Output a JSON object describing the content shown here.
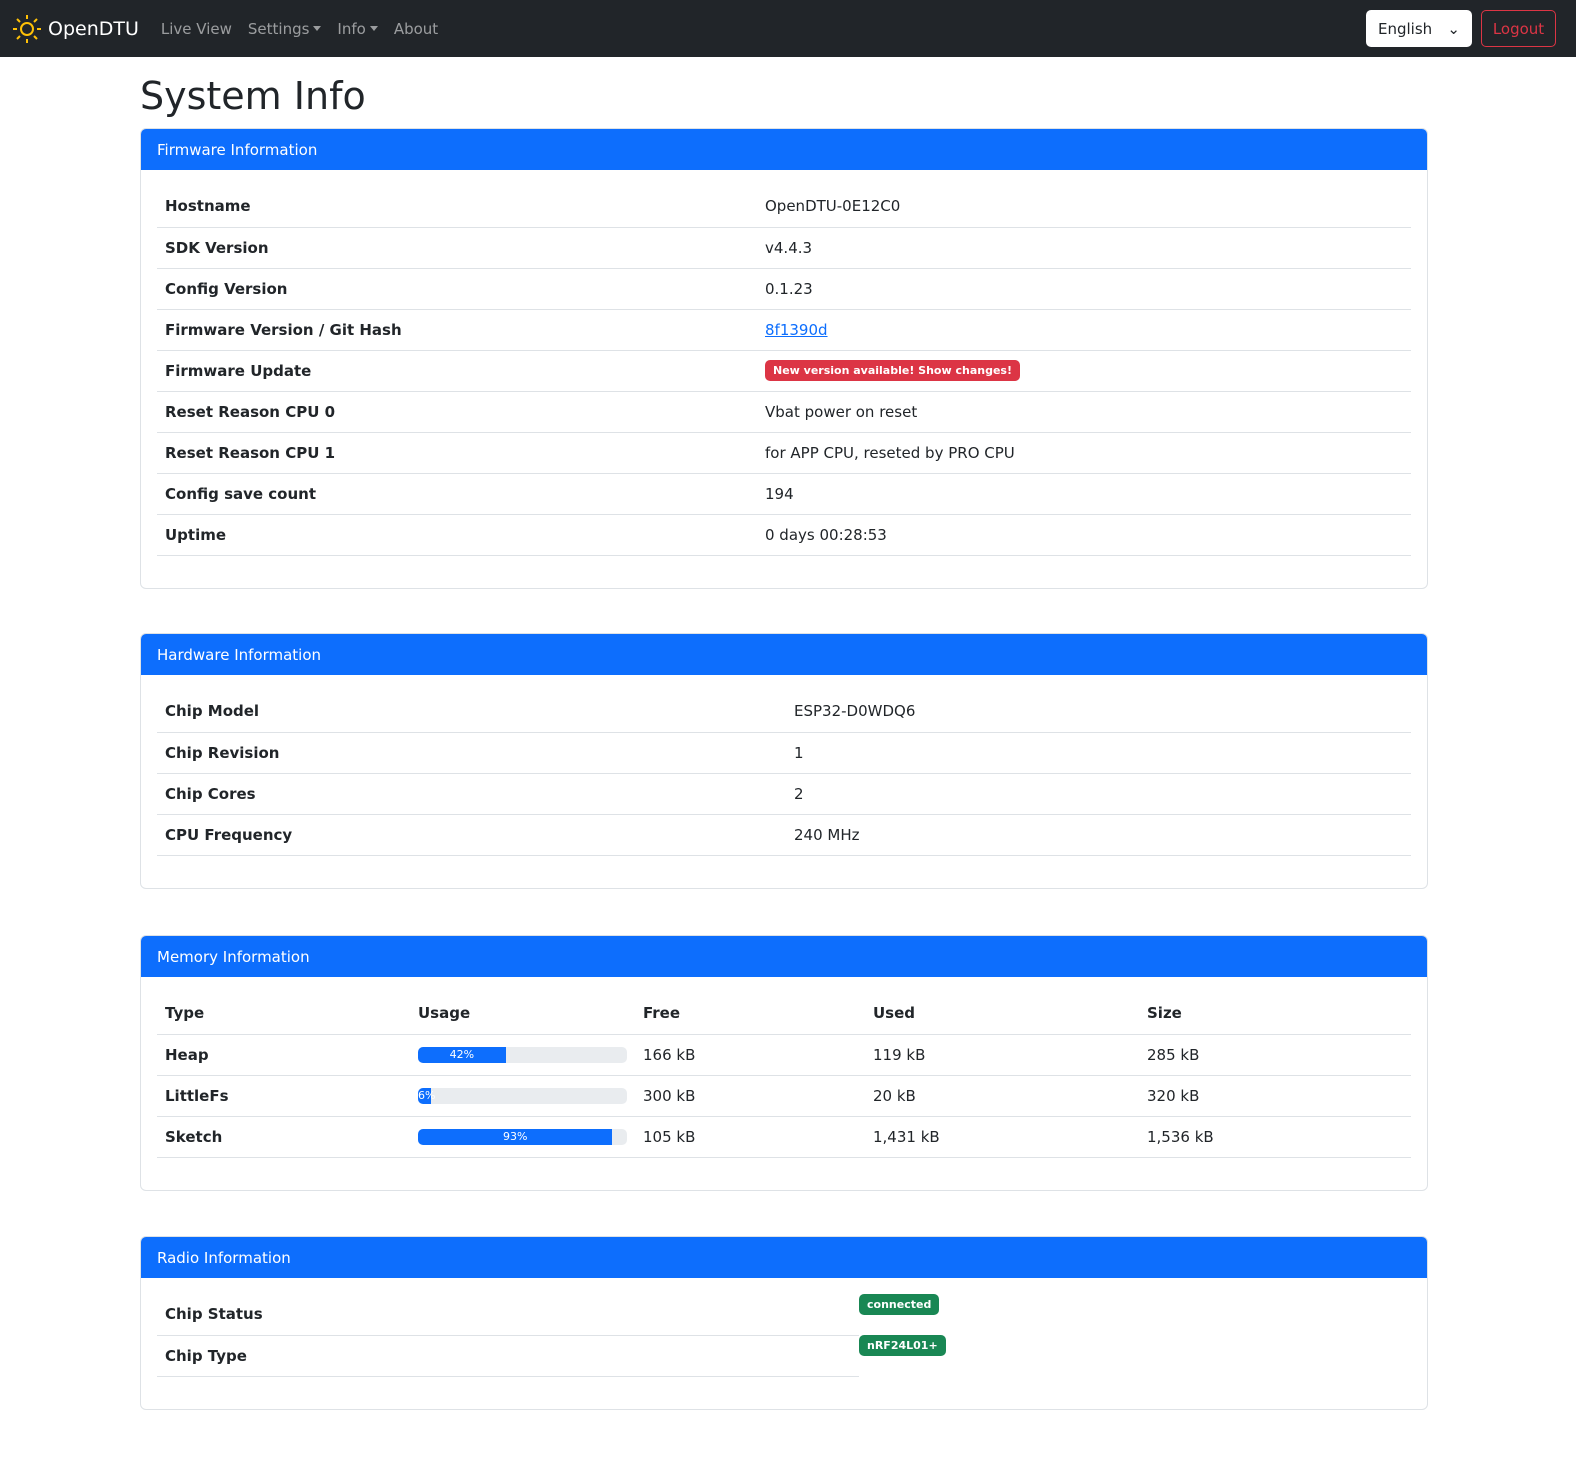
{
  "nav": {
    "brand": "OpenDTU",
    "items": [
      "Live View",
      "Settings",
      "Info",
      "About"
    ],
    "language": "English",
    "logout": "Logout"
  },
  "title": "System Info",
  "firmware": {
    "header": "Firmware Information",
    "rows": [
      [
        "Hostname",
        "OpenDTU-0E12C0"
      ],
      [
        "SDK Version",
        "v4.4.3"
      ],
      [
        "Config Version",
        "0.1.23"
      ],
      [
        "Firmware Version / Git Hash",
        "8f1390d"
      ],
      [
        "Firmware Update",
        "New version available! Show changes!"
      ],
      [
        "Reset Reason CPU 0",
        "Vbat power on reset"
      ],
      [
        "Reset Reason CPU 1",
        "for APP CPU, reseted by PRO CPU"
      ],
      [
        "Config save count",
        "194"
      ],
      [
        "Uptime",
        "0 days 00:28:53"
      ]
    ]
  },
  "hardware": {
    "header": "Hardware Information",
    "rows": [
      [
        "Chip Model",
        "ESP32-D0WDQ6"
      ],
      [
        "Chip Revision",
        "1"
      ],
      [
        "Chip Cores",
        "2"
      ],
      [
        "CPU Frequency",
        "240 MHz"
      ]
    ]
  },
  "memory": {
    "header": "Memory Information",
    "columns": [
      "Type",
      "Usage",
      "Free",
      "Used",
      "Size"
    ],
    "rows": [
      {
        "type": "Heap",
        "usage": 42,
        "usage_label": "42%",
        "free": "166 kB",
        "used": "119 kB",
        "size": "285 kB"
      },
      {
        "type": "LittleFs",
        "usage": 6,
        "usage_label": "6%",
        "free": "300 kB",
        "used": "20 kB",
        "size": "320 kB"
      },
      {
        "type": "Sketch",
        "usage": 93,
        "usage_label": "93%",
        "free": "105 kB",
        "used": "1,431 kB",
        "size": "1,536 kB"
      }
    ]
  },
  "radio": {
    "header": "Radio Information",
    "rows": [
      [
        "Chip Status",
        "connected"
      ],
      [
        "Chip Type",
        "nRF24L01+"
      ]
    ]
  },
  "colors": {
    "primary": "#0d6efd",
    "danger": "#dc3545",
    "success": "#198754",
    "navbar": "#212529"
  }
}
